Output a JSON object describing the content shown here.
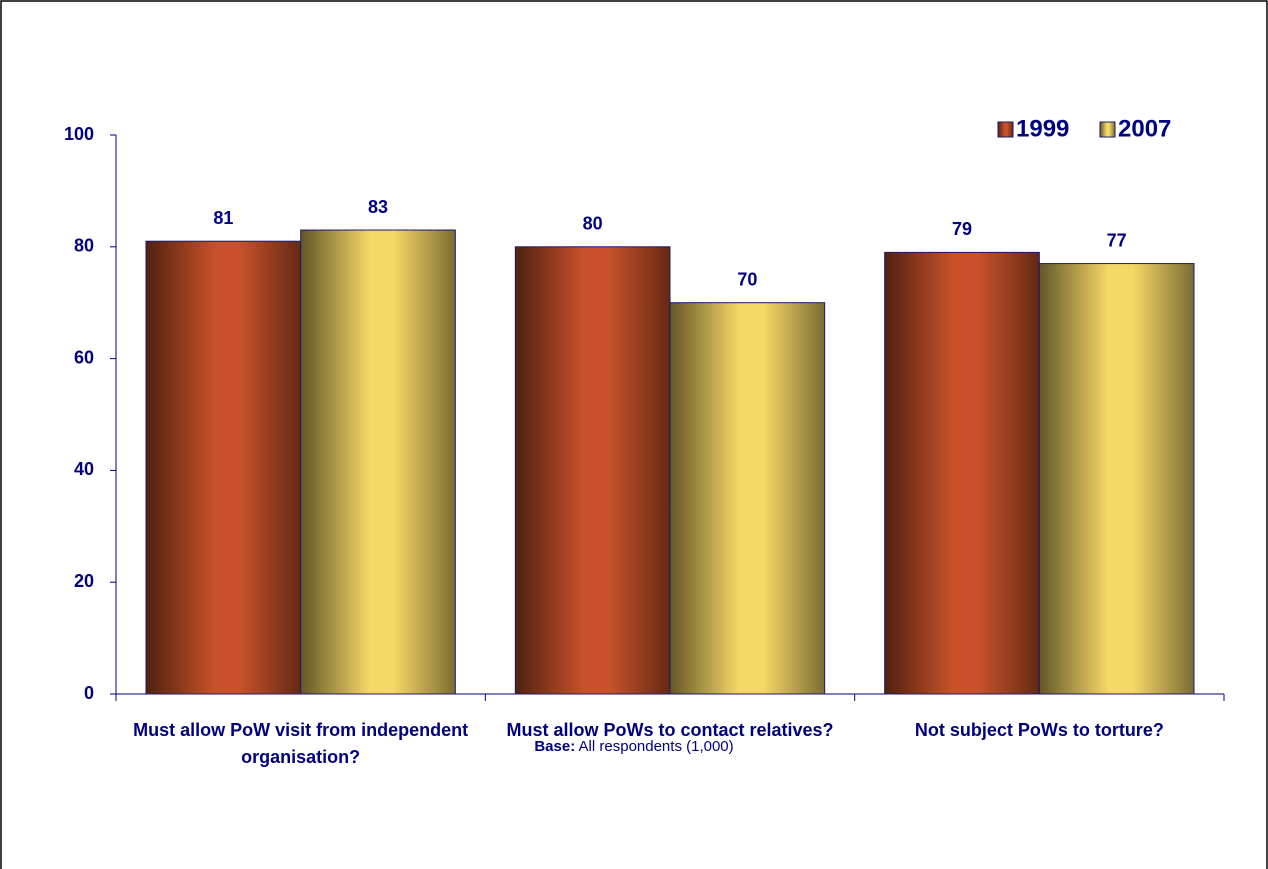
{
  "chart_data": {
    "type": "bar",
    "categories": [
      "Must allow PoW visit from independent organisation?",
      "Must allow PoWs to contact relatives?",
      "Not subject PoWs to torture?"
    ],
    "series": [
      {
        "name": "1999",
        "color": "#c9522a",
        "values": [
          81,
          80,
          79
        ]
      },
      {
        "name": "2007",
        "color": "#f7d866",
        "values": [
          83,
          70,
          77
        ]
      }
    ],
    "ylim": [
      0,
      100
    ],
    "yticks": [
      0,
      20,
      40,
      60,
      80,
      100
    ],
    "legend": "upper right",
    "base_label": "Base:",
    "base_text": "All respondents (1,000)"
  }
}
